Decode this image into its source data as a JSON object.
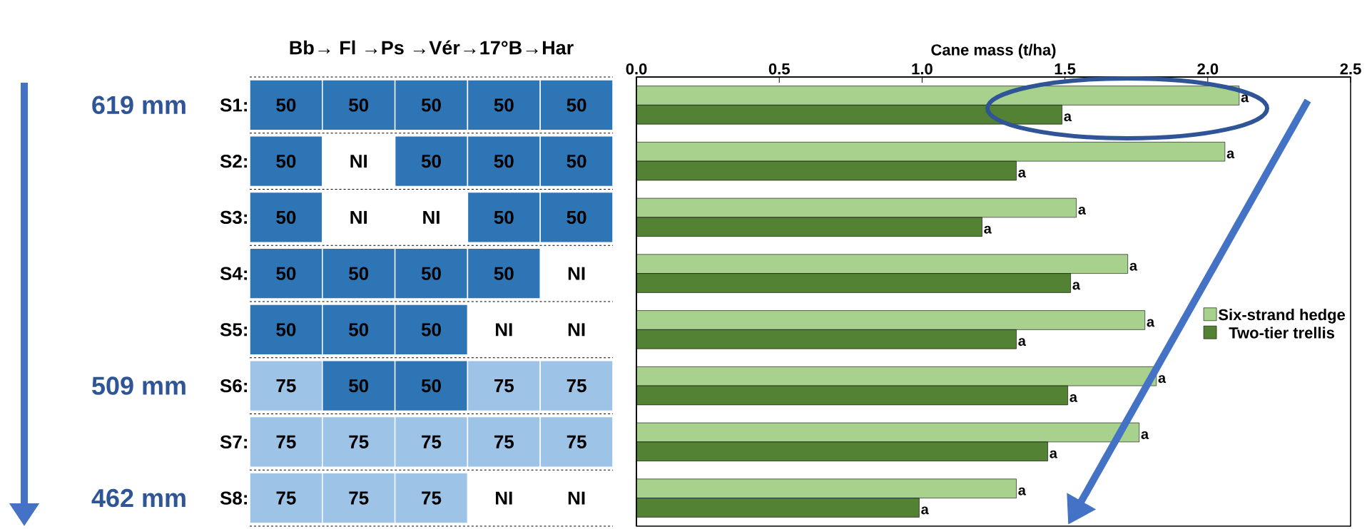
{
  "chart_data": [
    {
      "type": "heatmap",
      "title": "Bb→ Fl →Ps →Vér→17°B→Har",
      "categories": [
        null,
        null,
        null,
        null,
        null
      ],
      "y_categories": [
        "S1:",
        "S2:",
        "S3:",
        "S4:",
        "S5:",
        "S6:",
        "S7:",
        "S8:"
      ],
      "cells": [
        [
          50,
          50,
          50,
          50,
          50
        ],
        [
          50,
          null,
          50,
          50,
          50
        ],
        [
          50,
          null,
          null,
          50,
          50
        ],
        [
          50,
          50,
          50,
          50,
          null
        ],
        [
          50,
          50,
          50,
          null,
          null
        ],
        [
          75,
          50,
          50,
          75,
          75
        ],
        [
          75,
          75,
          75,
          75,
          75
        ],
        [
          75,
          75,
          75,
          null,
          null
        ]
      ],
      "cell_labels": [
        [
          "50",
          "50",
          "50",
          "50",
          "50"
        ],
        [
          "50",
          "NI",
          "50",
          "50",
          "50"
        ],
        [
          "50",
          "NI",
          "NI",
          "50",
          "50"
        ],
        [
          "50",
          "50",
          "50",
          "50",
          "NI"
        ],
        [
          "50",
          "50",
          "50",
          "NI",
          "NI"
        ],
        [
          "75",
          "50",
          "50",
          "75",
          "75"
        ],
        [
          "75",
          "75",
          "75",
          "75",
          "75"
        ],
        [
          "75",
          "75",
          "75",
          "NI",
          "NI"
        ]
      ],
      "colors": [
        "#2e75b6",
        "#9dc3e6"
      ],
      "grid": "y",
      "tick_labels": "y",
      "annotations": [
        "619 mm",
        "509 mm",
        "462 mm"
      ]
    },
    {
      "type": "bar",
      "orientation": "horizontal",
      "xlabel": "Cane mass (t/ha)",
      "categories": [
        null,
        null,
        null,
        null,
        null,
        null,
        null,
        null
      ],
      "xlim": [
        0,
        2.5
      ],
      "xticks": [
        {
          "value": 0,
          "label": "0.0"
        },
        0.5,
        {
          "value": 1,
          "label": "1.0"
        },
        1.5,
        {
          "value": 2,
          "label": "2.0"
        },
        2.5
      ],
      "tick_labels": "x",
      "legend": "right",
      "series": [
        {
          "name": "Six-strand hedge",
          "color": "#a9d18e",
          "values": [
            2.11,
            2.06,
            1.54,
            1.72,
            1.78,
            1.82,
            1.76,
            1.33
          ],
          "value_labels": [
            "a",
            "a",
            "a",
            "a",
            "a",
            "a",
            "a",
            "a"
          ]
        },
        {
          "name": "Two-tier trellis",
          "color": "#548235",
          "values": [
            1.49,
            1.33,
            1.21,
            1.52,
            1.33,
            1.51,
            1.44,
            0.99
          ],
          "value_labels": [
            "a",
            "a",
            "a",
            "a",
            "a",
            "a",
            "a",
            "a"
          ]
        }
      ]
    }
  ]
}
